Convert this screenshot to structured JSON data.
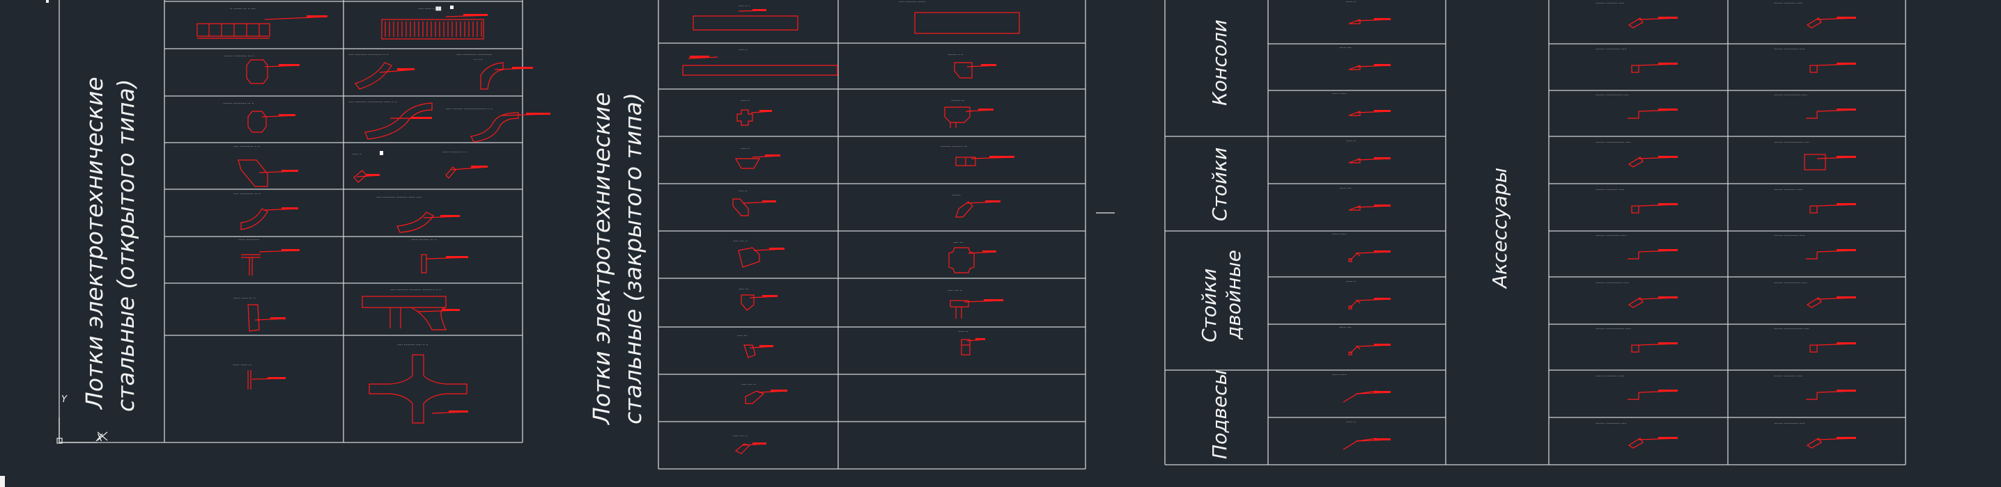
{
  "sections": {
    "open_trays": {
      "line1": "Лотки электротехнические",
      "line2": "стальные (открытого типа)"
    },
    "closed_trays": {
      "line1": "Лотки электротехнические",
      "line2": "стальные (закрытого типа)"
    },
    "consoles": "Консоли",
    "posts": "Стойки",
    "double_posts": {
      "line1": "Стойки",
      "line2": "двойные"
    },
    "hangers": "Подвесы",
    "accessories": "Аксессуары"
  },
  "ucs": {
    "x": "X",
    "y": "Y"
  },
  "colors": {
    "background": "#212830",
    "grid": "#cfd3d6",
    "symbol": "#ff1a1a",
    "text": "#f2f2f2"
  }
}
